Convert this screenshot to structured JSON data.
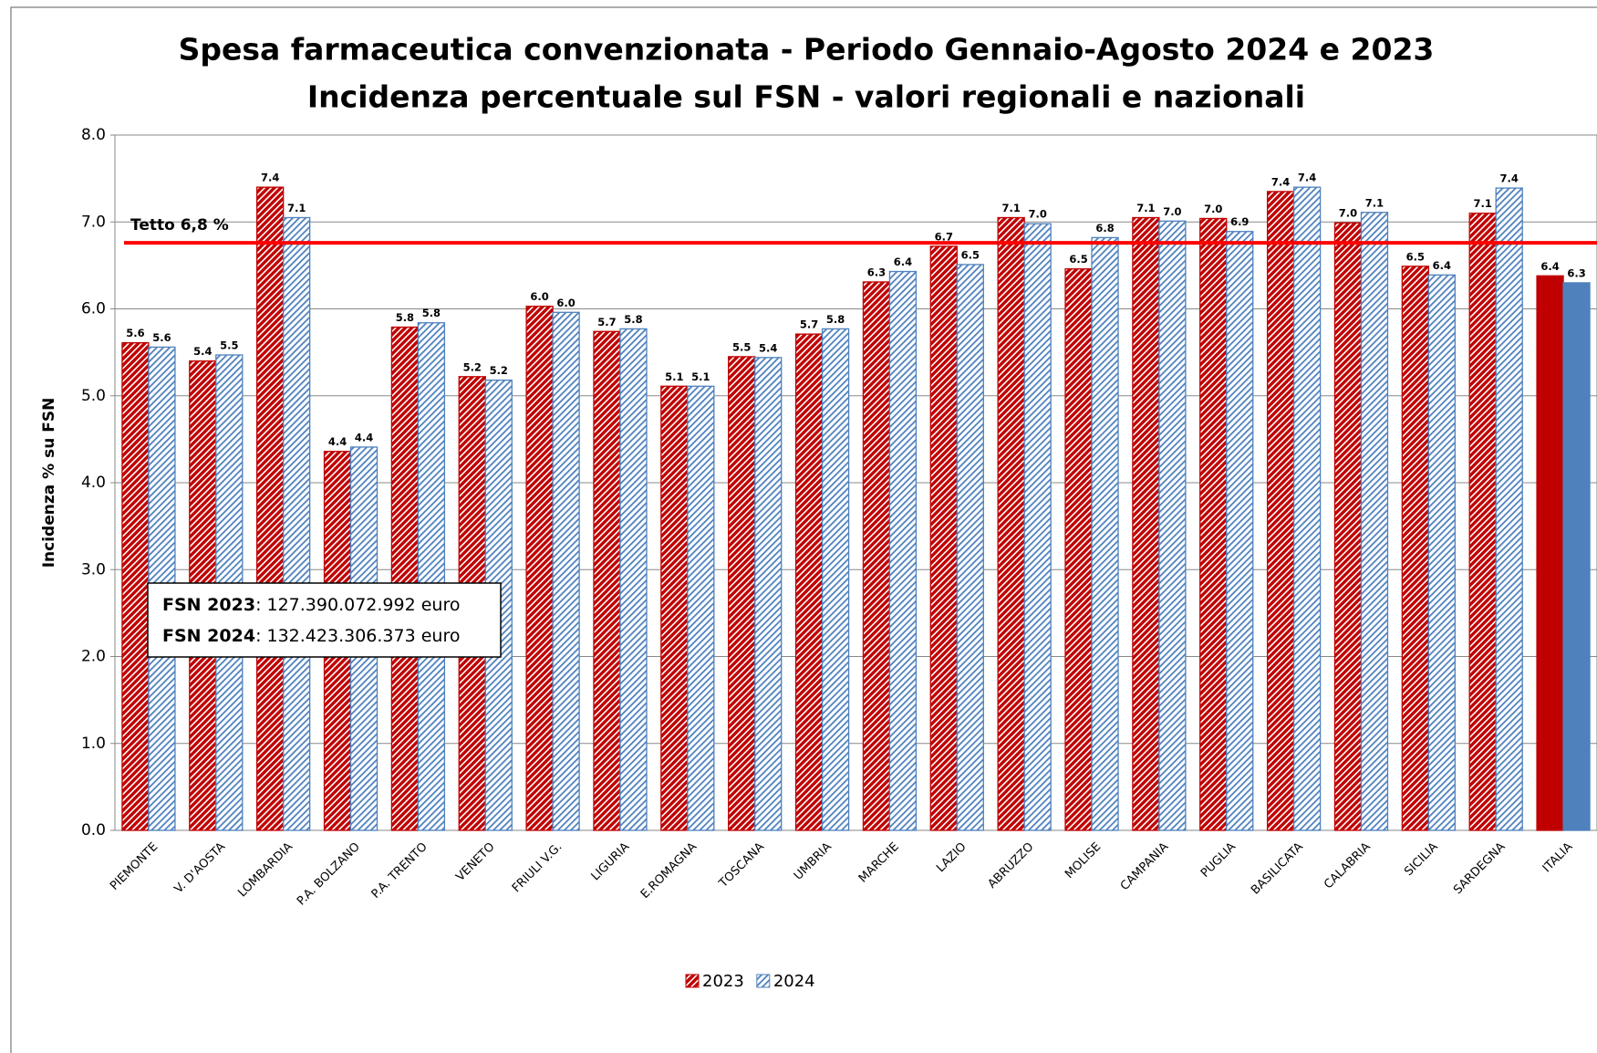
{
  "chart_data": {
    "type": "bar",
    "title": [
      "Spesa farmaceutica convenzionata - Periodo Gennaio-Agosto 2024 e 2023",
      "Incidenza percentuale sul FSN - valori regionali e nazionali"
    ],
    "y_label": "Incidenza % su FSN",
    "categories": [
      "PIEMONTE",
      "V. D'AOSTA",
      "LOMBARDIA",
      "P.A. BOLZANO",
      "P.A. TRENTO",
      "VENETO",
      "FRIULI V.G.",
      "LIGURIA",
      "E.ROMAGNA",
      "TOSCANA",
      "UMBRIA",
      "MARCHE",
      "LAZIO",
      "ABRUZZO",
      "MOLISE",
      "CAMPANIA",
      "PUGLIA",
      "BASILICATA",
      "CALABRIA",
      "SICILIA",
      "SARDEGNA",
      "ITALIA"
    ],
    "bar_styles": [
      "hatch",
      "hatch",
      "hatch",
      "hatch",
      "hatch",
      "hatch",
      "hatch",
      "hatch",
      "hatch",
      "hatch",
      "hatch",
      "hatch",
      "hatch",
      "hatch",
      "hatch",
      "hatch",
      "hatch",
      "hatch",
      "hatch",
      "hatch",
      "hatch",
      "solid"
    ],
    "series": [
      {
        "name": "2023",
        "color": "#c00000",
        "values": [
          5.61,
          5.4,
          7.4,
          4.36,
          5.79,
          5.22,
          6.03,
          5.74,
          5.11,
          5.45,
          5.71,
          6.31,
          6.72,
          7.05,
          6.46,
          7.05,
          7.04,
          7.35,
          6.99,
          6.49,
          7.1,
          6.38
        ],
        "value_labels": [
          "5.6",
          "5.4",
          "7.4",
          "4.4",
          "5.8",
          "5.2",
          "6.0",
          "5.7",
          "5.1",
          "5.5",
          "5.7",
          "6.3",
          "6.7",
          "7.1",
          "6.5",
          "7.1",
          "7.0",
          "7.4",
          "7.0",
          "6.5",
          "7.1",
          "6.4"
        ]
      },
      {
        "name": "2024",
        "color": "#4f81bd",
        "values": [
          5.56,
          5.47,
          7.05,
          4.41,
          5.84,
          5.18,
          5.96,
          5.77,
          5.11,
          5.44,
          5.77,
          6.43,
          6.51,
          6.98,
          6.82,
          7.01,
          6.89,
          7.4,
          7.11,
          6.39,
          7.39,
          6.3
        ],
        "value_labels": [
          "5.6",
          "5.5",
          "7.1",
          "4.4",
          "5.8",
          "5.2",
          "6.0",
          "5.8",
          "5.1",
          "5.4",
          "5.8",
          "6.4",
          "6.5",
          "7.0",
          "6.8",
          "7.0",
          "6.9",
          "7.4",
          "7.1",
          "6.4",
          "7.4",
          "6.3"
        ]
      }
    ],
    "ylim": [
      0,
      8
    ],
    "yticks": [
      {
        "value": 0,
        "label": "0.0"
      },
      {
        "value": 1,
        "label": "1.0"
      },
      {
        "value": 2,
        "label": "2.0"
      },
      {
        "value": 3,
        "label": "3.0"
      },
      {
        "value": 4,
        "label": "4.0"
      },
      {
        "value": 5,
        "label": "5.0"
      },
      {
        "value": 6,
        "label": "6.0"
      },
      {
        "value": 7,
        "label": "7.0"
      },
      {
        "value": 8,
        "label": "8.0"
      }
    ],
    "grid": true,
    "reference_line": {
      "value": 6.76,
      "label": "Tetto 6,8 %",
      "color": "#ff0000"
    },
    "annotations": [
      {
        "bold": "FSN 2023",
        "text": ": 127.390.072.992 euro"
      },
      {
        "bold": "FSN 2024",
        "text": ": 132.423.306.373 euro"
      }
    ],
    "legend": "bottom"
  }
}
